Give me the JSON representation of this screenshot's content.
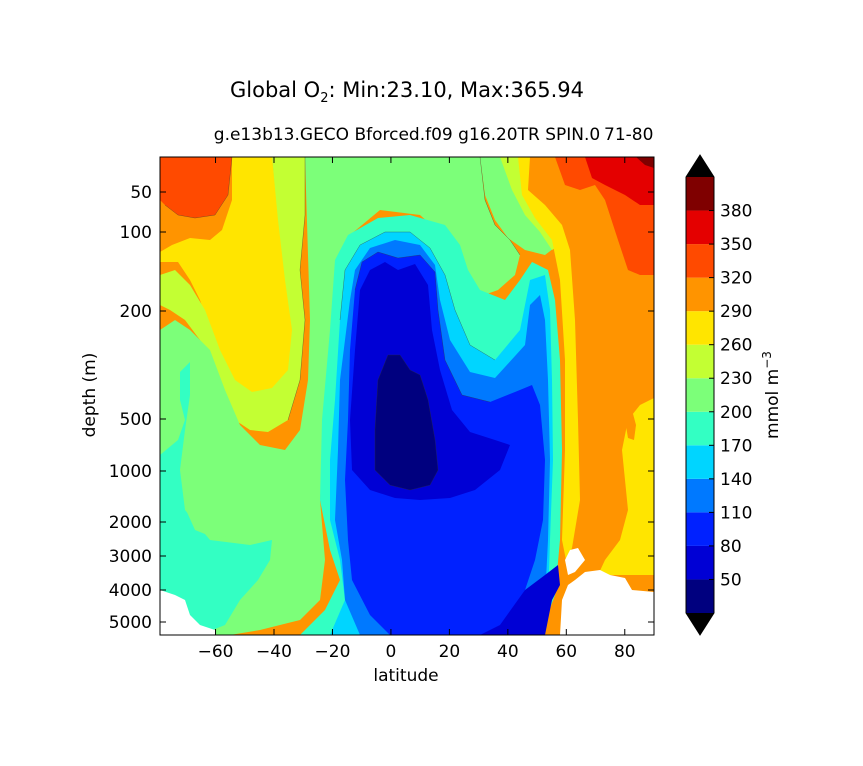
{
  "chart_data": {
    "type": "contourf",
    "title_main": "Global O",
    "title_sub": "2",
    "title_rest": ": Min:23.10, Max:365.94",
    "subtitle_left": "g.e13b13.GECO Bforced.f09 g16.20TR SPIN.0",
    "subtitle_right": "71-80",
    "xlabel": "latitude",
    "ylabel": "depth (m)",
    "x_ticks": [
      "−60",
      "−40",
      "−20",
      "0",
      "20",
      "40",
      "60",
      "80"
    ],
    "y_ticks": [
      "50",
      "100",
      "200",
      "500",
      "1000",
      "2000",
      "3000",
      "4000",
      "5000"
    ],
    "xlim": [
      -79,
      90
    ],
    "ylim": [
      5500,
      0
    ],
    "colorbar": {
      "label": "mmol m",
      "label_exp": "−3",
      "ticks": [
        "380",
        "350",
        "320",
        "290",
        "260",
        "230",
        "200",
        "170",
        "140",
        "110",
        "80",
        "50"
      ],
      "levels": [
        20,
        50,
        80,
        110,
        140,
        170,
        200,
        230,
        260,
        290,
        320,
        350,
        380,
        410
      ],
      "colors": [
        "#00007f",
        "#0000d5",
        "#0021ff",
        "#0079ff",
        "#00d5ff",
        "#33ffc3",
        "#7cff79",
        "#c3ff33",
        "#ffe500",
        "#ff9400",
        "#ff4a00",
        "#e40000",
        "#7f0000"
      ],
      "extend": "both"
    },
    "min": 23.1,
    "max": 365.94
  }
}
